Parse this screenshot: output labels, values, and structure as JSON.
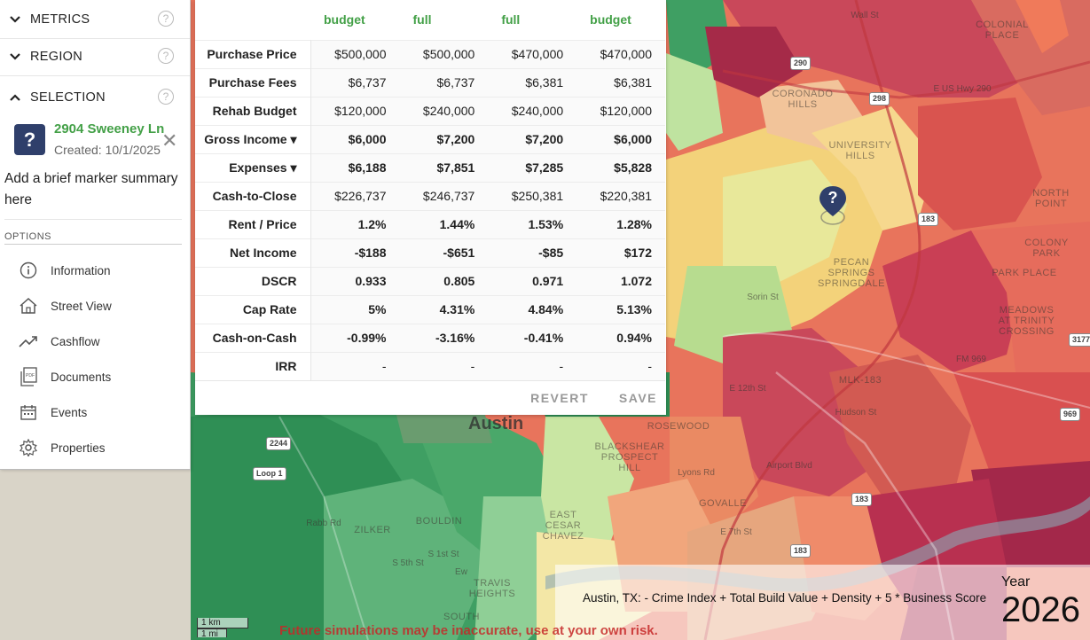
{
  "sidebar": {
    "sections": [
      {
        "label": "METRICS",
        "expanded": false,
        "icon": "chevron-down-icon"
      },
      {
        "label": "REGION",
        "expanded": false,
        "icon": "chevron-down-icon"
      },
      {
        "label": "SELECTION",
        "expanded": true,
        "icon": "chevron-up-icon"
      }
    ],
    "help_glyph": "?",
    "selection": {
      "icon_glyph": "?",
      "title": "2904 Sweeney Ln",
      "created": "Created: 10/1/2025",
      "close_glyph": "✕",
      "summary": "Add a brief marker summary here"
    },
    "options_heading": "OPTIONS",
    "options": [
      {
        "label": "Information",
        "icon": "info-icon"
      },
      {
        "label": "Street View",
        "icon": "street-view-icon"
      },
      {
        "label": "Cashflow",
        "icon": "trend-icon"
      },
      {
        "label": "Documents",
        "icon": "pdf-icon"
      },
      {
        "label": "Events",
        "icon": "calendar-icon"
      },
      {
        "label": "Properties",
        "icon": "gear-icon"
      }
    ]
  },
  "table": {
    "columns": [
      "budget",
      "full",
      "full",
      "budget"
    ],
    "rows": [
      {
        "label": "Purchase Price",
        "values": [
          "$500,000",
          "$500,000",
          "$470,000",
          "$470,000"
        ],
        "style": [
          "",
          "",
          "",
          ""
        ]
      },
      {
        "label": "Purchase Fees",
        "values": [
          "$6,737",
          "$6,737",
          "$6,381",
          "$6,381"
        ],
        "style": [
          "",
          "",
          "",
          ""
        ]
      },
      {
        "label": "Rehab Budget",
        "values": [
          "$120,000",
          "$240,000",
          "$240,000",
          "$120,000"
        ],
        "style": [
          "",
          "",
          "",
          ""
        ]
      },
      {
        "label": "Gross Income ▾",
        "values": [
          "$6,000",
          "$7,200",
          "$7,200",
          "$6,000"
        ],
        "style": [
          "pos",
          "pos",
          "pos",
          "pos"
        ]
      },
      {
        "label": "Expenses ▾",
        "values": [
          "$6,188",
          "$7,851",
          "$7,285",
          "$5,828"
        ],
        "style": [
          "neg",
          "neg",
          "neg",
          "neg"
        ]
      },
      {
        "label": "Cash-to-Close",
        "values": [
          "$226,737",
          "$246,737",
          "$250,381",
          "$220,381"
        ],
        "style": [
          "",
          "",
          "",
          ""
        ]
      },
      {
        "label": "Rent / Price",
        "values": [
          "1.2%",
          "1.44%",
          "1.53%",
          "1.28%"
        ],
        "style": [
          "pos",
          "pos",
          "pos",
          "pos"
        ]
      },
      {
        "label": "Net Income",
        "values": [
          "-$188",
          "-$651",
          "-$85",
          "$172"
        ],
        "style": [
          "ora",
          "neg",
          "ora",
          "lgr"
        ]
      },
      {
        "label": "DSCR",
        "values": [
          "0.933",
          "0.805",
          "0.971",
          "1.072"
        ],
        "style": [
          "ora",
          "ora",
          "ora",
          "ora"
        ]
      },
      {
        "label": "Cap Rate",
        "values": [
          "5%",
          "4.31%",
          "4.84%",
          "5.13%"
        ],
        "style": [
          "lgr",
          "lgr",
          "lgr",
          "pos"
        ]
      },
      {
        "label": "Cash-on-Cash",
        "values": [
          "-0.99%",
          "-3.16%",
          "-0.41%",
          "0.94%"
        ],
        "style": [
          "ora",
          "neg",
          "ora",
          "ora"
        ]
      },
      {
        "label": "IRR",
        "values": [
          "-",
          "-",
          "-",
          "-"
        ],
        "style": [
          "",
          "",
          "",
          ""
        ]
      }
    ],
    "revert_label": "REVERT",
    "save_label": "SAVE"
  },
  "map": {
    "labels": {
      "austin": "Austin",
      "coronado": "CORONADO HILLS",
      "university": "UNIVERSITY HILLS",
      "pecan": "PECAN SPRINGS SPRINGDALE",
      "north_point": "NORTH POINT",
      "colony_park": "COLONY PARK",
      "park_place": "PARK PLACE",
      "meadows": "MEADOWS AT TRINITY CROSSING",
      "colonial": "COLONIAL PLACE",
      "rosewood": "ROSEWOOD",
      "blackshear": "BLACKSHEAR PROSPECT HILL",
      "east_cesar": "EAST CESAR CHAVEZ",
      "govalle": "GOVALLE",
      "zilker": "ZILKER",
      "bouldin": "BOULDIN",
      "travis": "TRAVIS HEIGHTS",
      "south": "SOUTH",
      "mlk": "MLK-183",
      "sorin": "Sorin St",
      "e12th": "E 12th St",
      "e7th": "E 7th St",
      "hudson": "Hudson St",
      "lyons": "Lyons Rd",
      "airport": "Airport Blvd",
      "fm969": "FM 969",
      "loop1": "Loop 1",
      "us290": "E US Hwy 290",
      "walsh": "Wall St",
      "rabb": "Rabb Rd",
      "s5th": "S 5th St",
      "s1st": "S 1st St",
      "ewo": "Ew"
    },
    "shields": [
      "290",
      "298",
      "183",
      "183",
      "183",
      "969",
      "3177",
      "2244",
      "Loop 1"
    ],
    "marker_glyph": "?",
    "scale_km": "1 km",
    "scale_mi": "1 mi"
  },
  "footer": {
    "formula": "Austin, TX: - Crime Index + Total Build Value + Density + 5 * Business Score",
    "year_label": "Year",
    "year_value": "2026",
    "disclaimer": "Future simulations may be inaccurate, use at your own risk."
  },
  "colors": {
    "green": "#43a047",
    "dark_green": "#2e7d32",
    "red": "#c62828",
    "orange": "#f0a447",
    "light_green": "#8bc34a",
    "marker": "#2f3f6b"
  }
}
